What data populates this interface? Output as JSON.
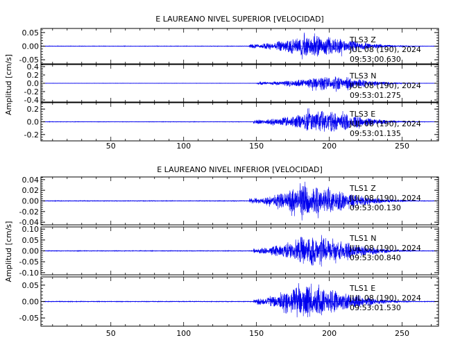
{
  "chart_data": [
    {
      "type": "line",
      "title": "E LAUREANO NIVEL SUPERIOR [VELOCIDAD]",
      "ylabel": "Amplitud [cm/s]",
      "xlim": [
        2,
        275
      ],
      "x_ticks": [
        50,
        100,
        150,
        200,
        250
      ],
      "panels": [
        {
          "station": "TLS3 Z",
          "date": "JUL 08 (190), 2024",
          "time": "09:53:00.630",
          "ylim": [
            -0.065,
            0.065
          ],
          "y_ticks": [
            -0.05,
            0.0,
            0.05
          ],
          "y_tick_labels": [
            "-0.05",
            "0.00",
            "0.05"
          ],
          "onset_x": 145,
          "peak_x": 182,
          "peak_amp": 0.06,
          "decay_x": 270
        },
        {
          "station": "TLS3 N",
          "date": "JUL 08 (190), 2024",
          "time": "09:53:01.275",
          "ylim": [
            -0.45,
            0.45
          ],
          "y_ticks": [
            -0.4,
            -0.2,
            0.0,
            0.2,
            0.4
          ],
          "y_tick_labels": [
            "-0.4",
            "-0.2",
            "0.0",
            "0.2",
            "0.4"
          ],
          "onset_x": 150,
          "peak_x": 195,
          "peak_amp": 0.25,
          "decay_x": 270
        },
        {
          "station": "TLS3 E",
          "date": "JUL 08 (190), 2024",
          "time": "09:53:01.135",
          "ylim": [
            -0.3,
            0.3
          ],
          "y_ticks": [
            -0.2,
            0.0,
            0.2
          ],
          "y_tick_labels": [
            "-0.2",
            "0.0",
            "0.2"
          ],
          "onset_x": 148,
          "peak_x": 190,
          "peak_amp": 0.26,
          "decay_x": 270
        }
      ]
    },
    {
      "type": "line",
      "title": "E LAUREANO NIVEL INFERIOR [VELOCIDAD]",
      "ylabel": "Amplitud [cm/s]",
      "xlim": [
        2,
        275
      ],
      "x_ticks": [
        50,
        100,
        150,
        200,
        250
      ],
      "panels": [
        {
          "station": "TLS1 Z",
          "date": "JUL 08 (190), 2024",
          "time": "09:53:00.130",
          "ylim": [
            -0.045,
            0.045
          ],
          "y_ticks": [
            -0.04,
            -0.02,
            0.0,
            0.02,
            0.04
          ],
          "y_tick_labels": [
            "-0.04",
            "-0.02",
            "0.00",
            "0.02",
            "0.04"
          ],
          "onset_x": 145,
          "peak_x": 180,
          "peak_amp": 0.042,
          "decay_x": 270
        },
        {
          "station": "TLS1 N",
          "date": "JUL 08 (190), 2024",
          "time": "09:53:00.840",
          "ylim": [
            -0.11,
            0.11
          ],
          "y_ticks": [
            -0.1,
            -0.05,
            0.0,
            0.05,
            0.1
          ],
          "y_tick_labels": [
            "-0.10",
            "-0.05",
            "0.00",
            "0.05",
            "0.10"
          ],
          "onset_x": 148,
          "peak_x": 182,
          "peak_amp": 0.1,
          "decay_x": 270
        },
        {
          "station": "TLS1 E",
          "date": "JUL 08 (190), 2024",
          "time": "09:53:01.530",
          "ylim": [
            -0.075,
            0.075
          ],
          "y_ticks": [
            -0.05,
            0.0,
            0.05
          ],
          "y_tick_labels": [
            "-0.05",
            "0.00",
            "0.05"
          ],
          "onset_x": 148,
          "peak_x": 180,
          "peak_amp": 0.07,
          "decay_x": 270
        }
      ]
    }
  ],
  "colors": {
    "trace": "#0000ee",
    "axes": "#000000",
    "background": "#ffffff"
  }
}
